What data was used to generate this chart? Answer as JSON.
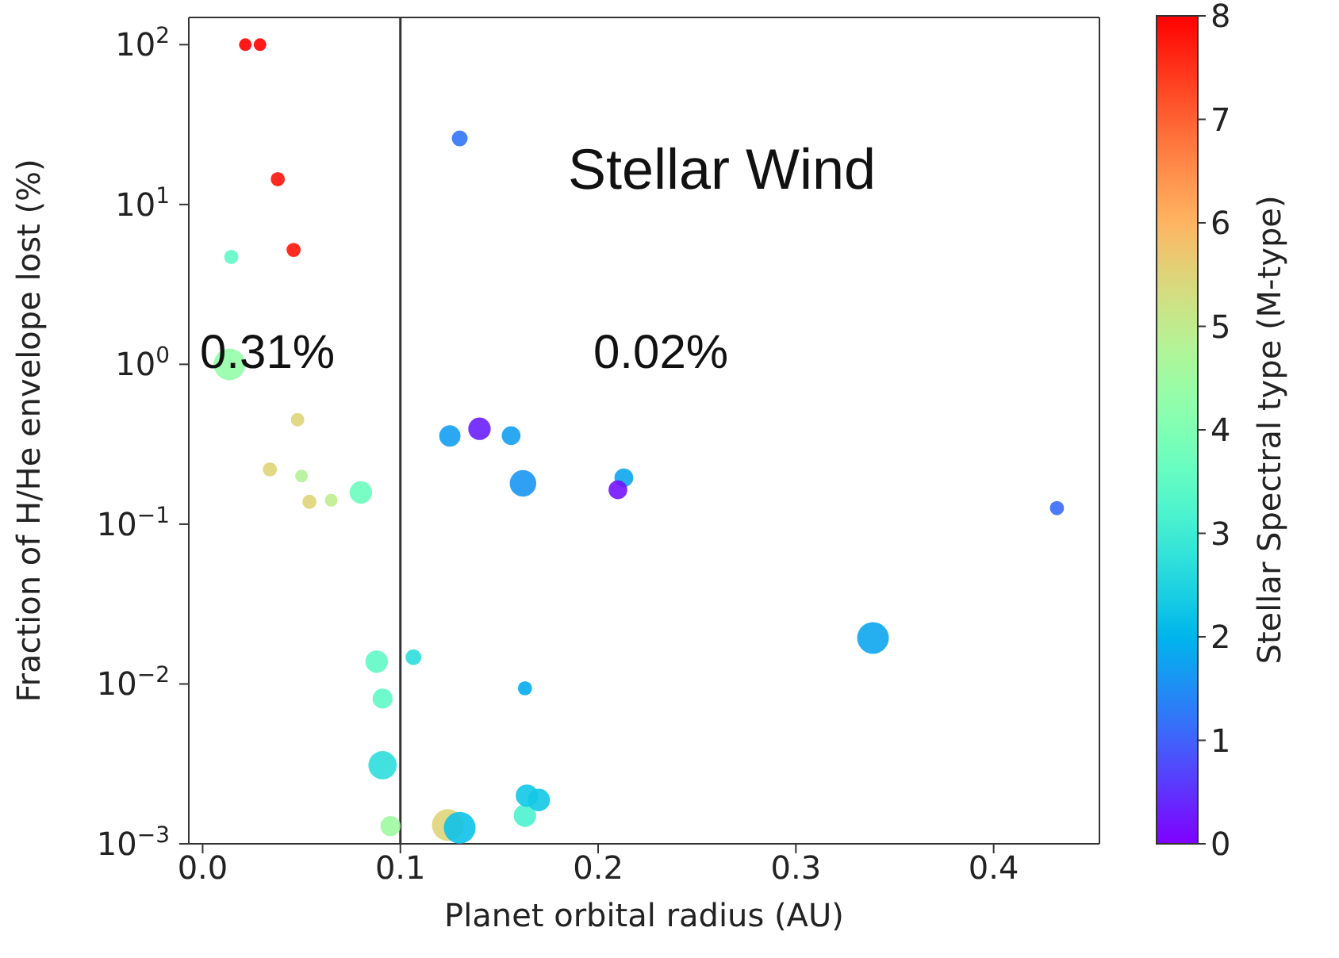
{
  "chart_data": {
    "type": "bubble",
    "xlabel": "Planet orbital radius (AU)",
    "ylabel": "Fraction of H/He envelope lost (%)",
    "clabel": "Stellar Spectral type (M-type)",
    "x": [
      0.0216,
      0.029,
      0.038,
      0.046,
      0.0145,
      0.0136,
      0.048,
      0.034,
      0.05,
      0.054,
      0.065,
      0.08,
      0.088,
      0.091,
      0.091,
      0.095,
      0.1066,
      0.124,
      0.13,
      0.163,
      0.164,
      0.17,
      0.163,
      0.13,
      0.125,
      0.14,
      0.156,
      0.162,
      0.213,
      0.21,
      0.432,
      0.339
    ],
    "values": [
      100,
      100,
      14.4,
      5.2,
      4.7,
      1.0,
      0.45,
      0.22,
      0.2,
      0.138,
      0.141,
      0.158,
      0.0138,
      0.0081,
      0.0031,
      0.00129,
      0.0147,
      0.00131,
      0.00126,
      0.0015,
      0.002,
      0.00188,
      0.0094,
      25.9,
      0.356,
      0.395,
      0.358,
      0.18,
      0.195,
      0.164,
      0.126,
      0.0194
    ],
    "sizes": [
      0.16,
      0.16,
      0.2,
      0.2,
      0.2,
      1,
      0.18,
      0.2,
      0.16,
      0.2,
      0.16,
      0.5,
      0.5,
      0.4,
      0.8,
      0.4,
      0.25,
      1,
      1,
      0.5,
      0.5,
      0.5,
      0.2,
      0.25,
      0.45,
      0.5,
      0.35,
      0.7,
      0.35,
      0.35,
      0.2,
      1
    ],
    "cvalues": [
      8,
      8,
      7.8,
      7.8,
      3.5,
      4.3,
      5.5,
      5.5,
      4.8,
      5.5,
      5,
      3.7,
      3.5,
      3.5,
      2.7,
      4.5,
      2.7,
      5.5,
      2.2,
      3.2,
      2.3,
      2.3,
      1.9,
      1.2,
      1.7,
      0.3,
      1.7,
      1.6,
      1.8,
      0.2,
      1.1,
      1.8
    ],
    "clim": [
      0,
      8
    ],
    "cticks": [
      0,
      1,
      2,
      3,
      4,
      5,
      6,
      7,
      8
    ],
    "xlim": [
      -0.007,
      0.4535
    ],
    "xticks": [
      {
        "value": 0,
        "label": "0.0"
      },
      0.1,
      0.2,
      0.3,
      0.4
    ],
    "log": "y",
    "ylim": [
      0.001,
      148
    ],
    "yticks": [
      {
        "value": 0.001,
        "label": "10$^{−3}$"
      },
      {
        "value": 0.01,
        "label": "10$^{−2}$"
      },
      {
        "value": 0.1,
        "label": "10$^{−1}$"
      },
      {
        "value": 1,
        "label": "10$^{0}$"
      },
      {
        "value": 10,
        "label": "10$^{1}$"
      },
      {
        "value": 100,
        "label": "10$^{2}$"
      }
    ],
    "ref_lines": [
      {
        "axis": "x",
        "value": 0.1,
        "color": "#333333"
      }
    ],
    "annotations": [
      "Stellar Wind",
      "0.31%",
      "0.02%"
    ]
  }
}
